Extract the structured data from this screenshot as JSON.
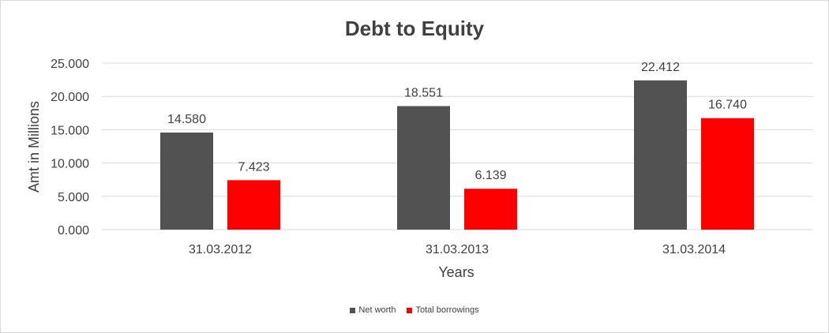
{
  "chart_data": {
    "type": "bar",
    "title": "Debt to Equity",
    "xlabel": "Years",
    "ylabel": "Amt in Millions",
    "categories": [
      "31.03.2012",
      "31.03.2013",
      "31.03.2014"
    ],
    "series": [
      {
        "name": "Net worth",
        "values": [
          14.58,
          18.551,
          22.412
        ],
        "labels": [
          "14.580",
          "18.551",
          "22.412"
        ],
        "color": "#525252"
      },
      {
        "name": "Total borrowings",
        "values": [
          7.423,
          6.139,
          16.74
        ],
        "labels": [
          "7.423",
          "6.139",
          "16.740"
        ],
        "color": "#ff0000"
      }
    ],
    "ylim": [
      0,
      25
    ],
    "yticks": [
      0,
      5,
      10,
      15,
      20,
      25
    ],
    "ytick_labels": [
      "0.000",
      "5.000",
      "10.000",
      "15.000",
      "20.000",
      "25.000"
    ],
    "grid": true,
    "legend_position": "bottom"
  }
}
